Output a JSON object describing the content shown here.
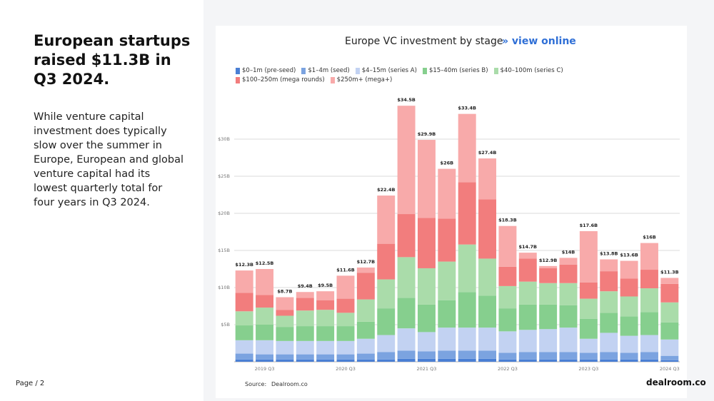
{
  "slide": {
    "heading": "European startups raised $11.3B in Q3 2024.",
    "body": "While venture capital investment does typically slow over the summer in Europe, European and global venture capital had its lowest quarterly total for four years in Q3 2024.",
    "page": "Page / 2",
    "logo": "dealroom.co"
  },
  "chart_data": {
    "type": "stacked_bar",
    "title": "Europe VC investment by stage",
    "link": "» view online",
    "source_label": "Source:",
    "source": "Dealroom.co",
    "categories": [
      null,
      "2019 Q3",
      null,
      null,
      null,
      "2020 Q3",
      null,
      null,
      null,
      "2021 Q3",
      null,
      null,
      null,
      "2022 Q3",
      null,
      null,
      null,
      "2023 Q3",
      null,
      null,
      null,
      "2024 Q3"
    ],
    "ylim": [
      0,
      35
    ],
    "yticks": [
      {
        "value": 5,
        "label": "$5B"
      },
      {
        "value": 10,
        "label": "$10B"
      },
      {
        "value": 15,
        "label": "$15B"
      },
      {
        "value": 20,
        "label": "$20B"
      },
      {
        "value": 25,
        "label": "$25B"
      },
      {
        "value": 30,
        "label": "$30B"
      }
    ],
    "grid": true,
    "series": [
      {
        "name": "$0–1m (pre-seed)",
        "color": "#4a7fd4",
        "values": [
          0.3,
          0.3,
          0.3,
          0.3,
          0.3,
          0.3,
          0.3,
          0.3,
          0.4,
          0.4,
          0.4,
          0.4,
          0.4,
          0.3,
          0.3,
          0.3,
          0.3,
          0.3,
          0.3,
          0.3,
          0.3,
          0.2
        ]
      },
      {
        "name": "$1–4m (seed)",
        "color": "#7ba3e0",
        "values": [
          0.8,
          0.7,
          0.7,
          0.7,
          0.7,
          0.7,
          0.8,
          1.0,
          1.1,
          1.0,
          1.1,
          1.1,
          1.1,
          0.9,
          1.0,
          1.0,
          1.0,
          0.9,
          1.0,
          0.9,
          1.0,
          0.6
        ]
      },
      {
        "name": "$4–15m (series A)",
        "color": "#c2d2f2",
        "values": [
          1.8,
          1.9,
          1.8,
          1.8,
          1.8,
          1.8,
          2.0,
          2.3,
          3.0,
          2.6,
          3.1,
          3.1,
          3.1,
          2.9,
          3.0,
          3.1,
          3.3,
          1.9,
          2.6,
          2.3,
          2.3,
          2.2
        ]
      },
      {
        "name": "$15–40m (series B)",
        "color": "#86cf8e",
        "values": [
          2.0,
          2.1,
          1.9,
          2.0,
          2.0,
          2.0,
          2.3,
          3.6,
          4.1,
          3.7,
          3.7,
          4.8,
          4.3,
          3.1,
          3.4,
          3.3,
          3.0,
          2.7,
          2.7,
          2.6,
          3.1,
          2.3
        ]
      },
      {
        "name": "$40–100m (series C)",
        "color": "#aadcaa",
        "values": [
          1.9,
          2.3,
          1.5,
          2.1,
          2.2,
          1.8,
          3.0,
          3.9,
          5.5,
          4.9,
          5.2,
          6.4,
          5.0,
          3.0,
          3.1,
          2.9,
          3.0,
          2.7,
          2.9,
          2.7,
          3.2,
          2.7
        ]
      },
      {
        "name": "$100–250m (mega rounds)",
        "color": "#f27d7d",
        "values": [
          2.5,
          1.7,
          0.8,
          1.7,
          1.3,
          1.9,
          3.6,
          4.8,
          5.8,
          6.8,
          5.8,
          8.4,
          8.0,
          2.6,
          3.1,
          2.0,
          2.5,
          2.2,
          2.7,
          2.4,
          2.5,
          2.5
        ]
      },
      {
        "name": "$250m+ (mega+)",
        "color": "#f8aaaa",
        "values": [
          3.0,
          3.5,
          1.7,
          0.8,
          1.2,
          3.1,
          0.7,
          6.5,
          14.6,
          10.5,
          6.7,
          9.2,
          5.5,
          5.5,
          0.8,
          0.3,
          0.9,
          6.9,
          1.6,
          2.4,
          3.6,
          0.8
        ]
      }
    ],
    "totals": {
      "values": [
        12.3,
        12.5,
        8.7,
        9.4,
        9.5,
        11.6,
        12.7,
        22.4,
        34.5,
        29.9,
        26,
        33.4,
        27.4,
        18.3,
        14.7,
        12.9,
        14,
        17.6,
        13.8,
        13.6,
        16,
        11.3
      ],
      "value_labels": [
        "$12.3B",
        "$12.5B",
        "$8.7B",
        "$9.4B",
        "$9.5B",
        "$11.6B",
        "$12.7B",
        "$22.4B",
        "$34.5B",
        "$29.9B",
        "$26B",
        "$33.4B",
        "$27.4B",
        "$18.3B",
        "$14.7B",
        "$12.9B",
        "$14B",
        "$17.6B",
        "$13.8B",
        "$13.6B",
        "$16B",
        "$11.3B"
      ]
    }
  }
}
